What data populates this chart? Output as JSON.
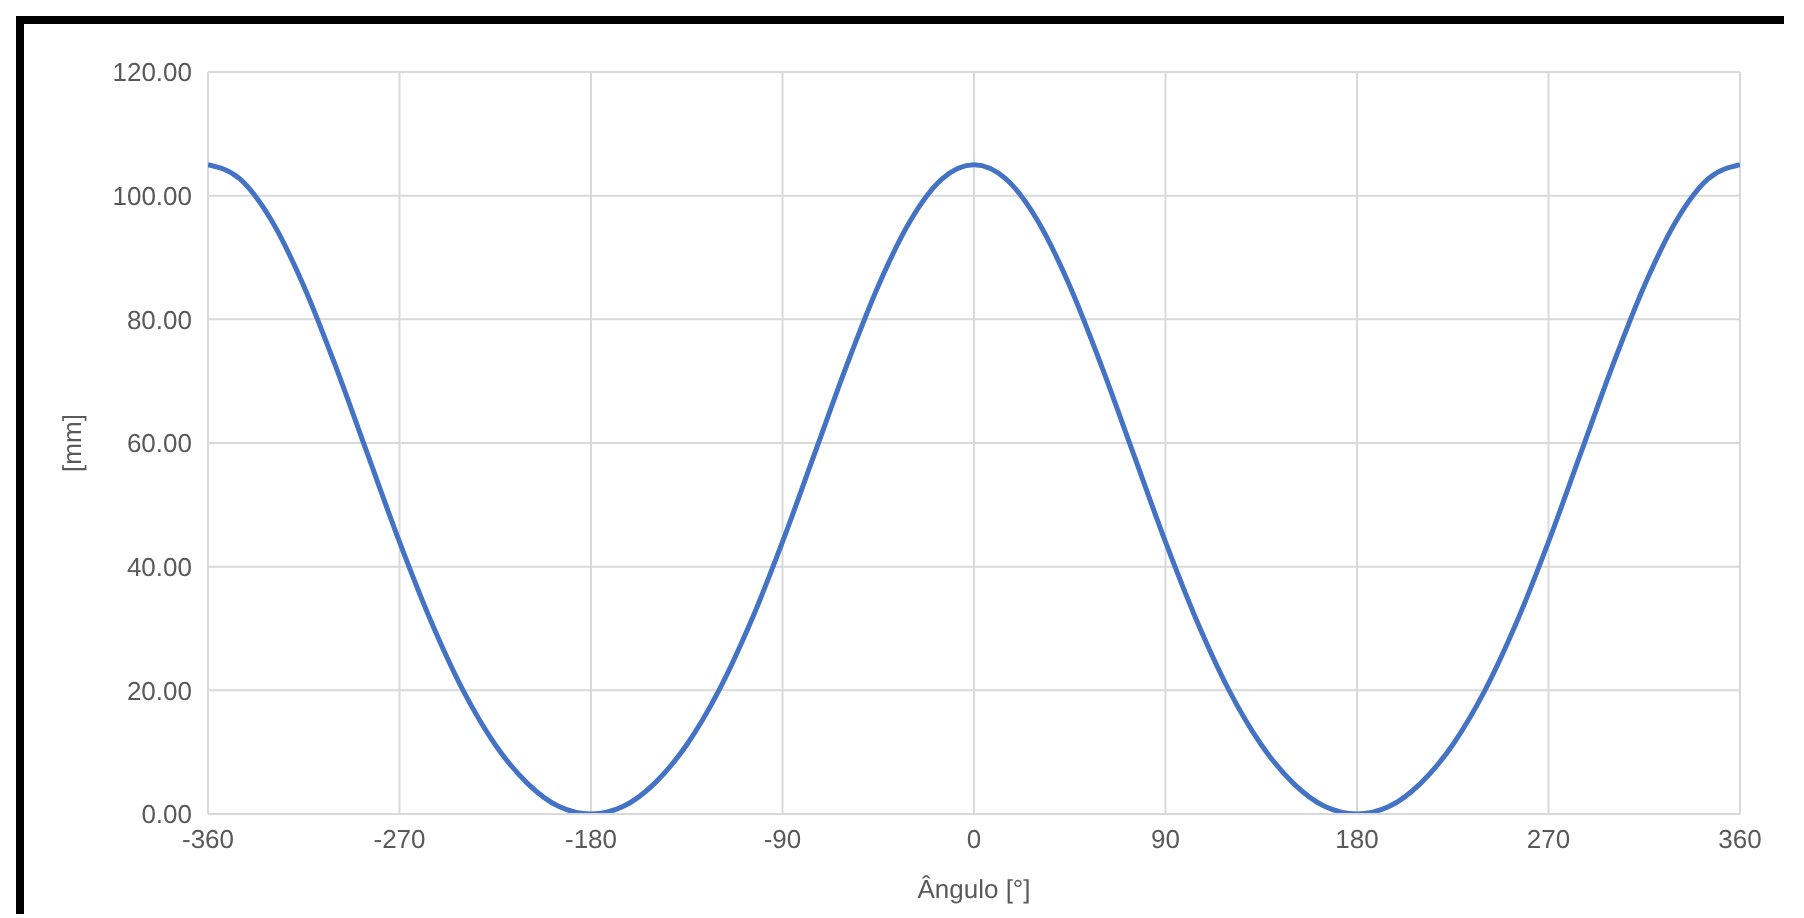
{
  "chart_data": {
    "type": "line",
    "xlabel": "Ângulo [°]",
    "ylabel": "[mm]",
    "x": [
      -360,
      -345,
      -330,
      -315,
      -300,
      -285,
      -270,
      -255,
      -240,
      -225,
      -210,
      -195,
      -180,
      -165,
      -150,
      -135,
      -120,
      -105,
      -90,
      -75,
      -60,
      -45,
      -30,
      -15,
      0,
      15,
      30,
      45,
      60,
      75,
      90,
      105,
      120,
      135,
      150,
      165,
      180,
      195,
      210,
      225,
      240,
      255,
      270,
      285,
      300,
      315,
      330,
      345,
      360
    ],
    "series": [
      {
        "color": "#4472c4",
        "values": [
          105,
          102.7,
          95.9,
          85.4,
          72.4,
          58.2,
          44.0,
          31.0,
          19.9,
          11.2,
          5.0,
          1.2,
          0,
          1.2,
          5.0,
          11.2,
          19.9,
          31.0,
          44.0,
          58.2,
          72.4,
          85.4,
          95.9,
          102.7,
          105,
          102.7,
          95.9,
          85.4,
          72.4,
          58.2,
          44.0,
          31.0,
          19.9,
          11.2,
          5.0,
          1.2,
          0,
          1.2,
          5.0,
          11.2,
          19.9,
          31.0,
          44.0,
          58.2,
          72.4,
          85.4,
          95.9,
          102.7,
          105
        ]
      }
    ],
    "xlim": [
      -360,
      360
    ],
    "xticks": [
      -360,
      -270,
      -180,
      -90,
      0,
      90,
      180,
      270,
      360
    ],
    "ylim": [
      0,
      120
    ],
    "yticks": [
      {
        "value": 0,
        "label": "0.00"
      },
      {
        "value": 20,
        "label": "20.00"
      },
      {
        "value": 40,
        "label": "40.00"
      },
      {
        "value": 60,
        "label": "60.00"
      },
      {
        "value": 80,
        "label": "80.00"
      },
      {
        "value": 100,
        "label": "100.00"
      },
      {
        "value": 120,
        "label": "120.00"
      }
    ],
    "grid": true,
    "marker": "none",
    "line_style": "solid"
  }
}
